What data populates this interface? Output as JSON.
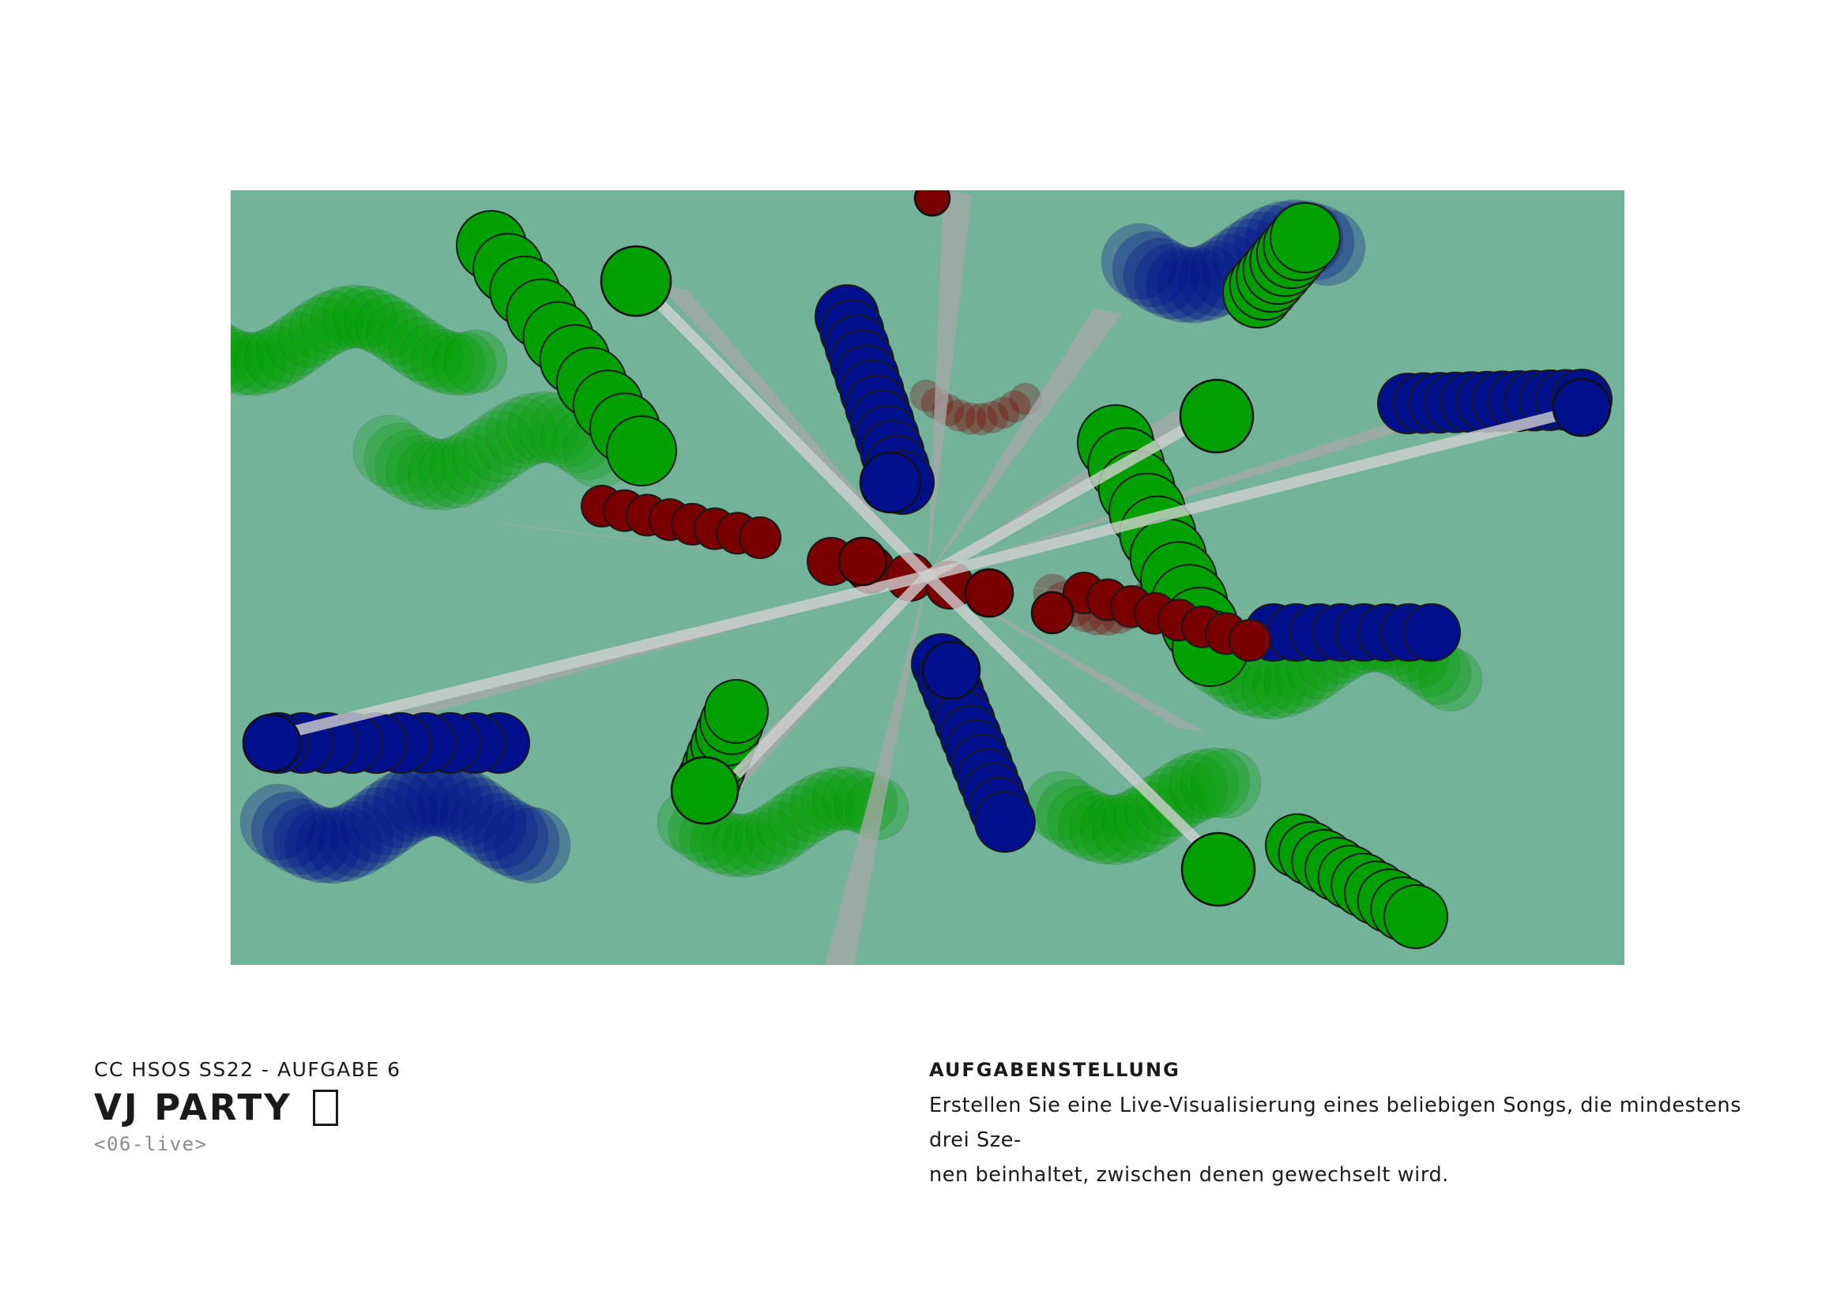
{
  "artwork": {
    "description_icon": "vj-visualization-image",
    "colors": {
      "background": "#72b39a",
      "green": "#00a000",
      "blue": "#000f8c",
      "red": "#7a0000",
      "beam": "#a8a8a8"
    }
  },
  "header": {
    "course": "CC HSOS SS22 - AUFGABE 6",
    "title": "VJ PARTY",
    "title_icon": "missing-glyph-icon",
    "tag": "<06-live>"
  },
  "task": {
    "heading": "AUFGABENSTELLUNG",
    "line1": "Erstellen Sie eine Live-Visualisierung eines beliebigen Songs, die mindestens drei Sze-",
    "line2": "nen beinhaltet, zwischen denen gewechselt wird."
  }
}
